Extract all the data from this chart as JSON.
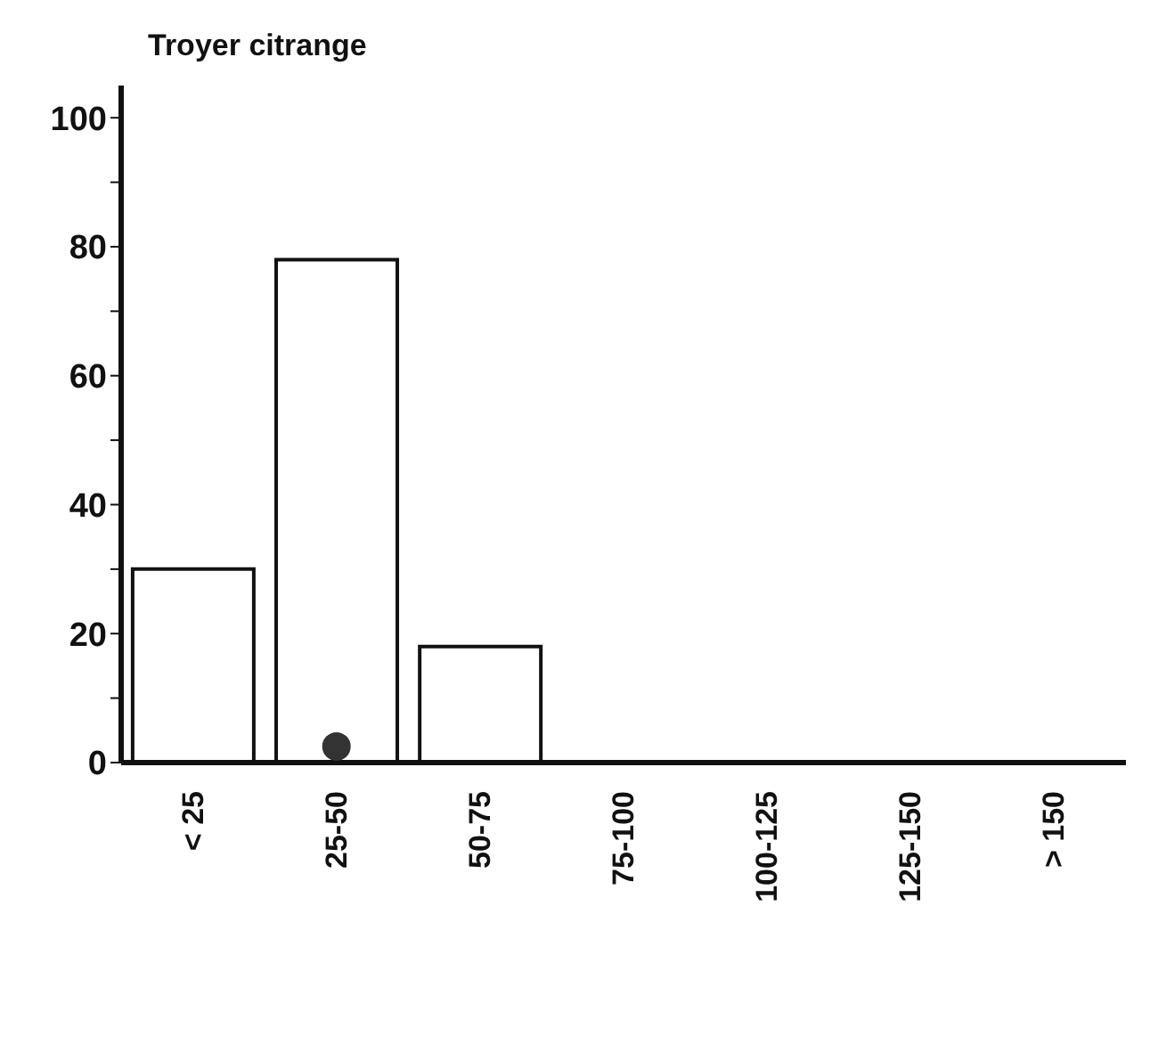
{
  "chart_data": {
    "type": "bar",
    "title": "Troyer citrange",
    "categories": [
      "< 25",
      "25-50",
      "50-75",
      "75-100",
      "100-125",
      "125-150",
      "> 150"
    ],
    "series": [
      {
        "color": "#ffffff",
        "values": [
          30,
          78,
          18,
          0,
          0,
          0,
          0
        ]
      },
      {
        "type": "scatter",
        "color": "#333333",
        "x": [
          "25-50"
        ],
        "values": [
          2.5
        ],
        "marker": "circle"
      }
    ],
    "ylim": [
      0,
      105
    ],
    "yticks": [
      0,
      {
        "value": 10,
        "label": null
      },
      20,
      {
        "value": 30,
        "label": null
      },
      40,
      {
        "value": 50,
        "label": null
      },
      60,
      {
        "value": 70,
        "label": null
      },
      80,
      {
        "value": 90,
        "label": null
      },
      100
    ],
    "grid": false,
    "legend": false
  }
}
